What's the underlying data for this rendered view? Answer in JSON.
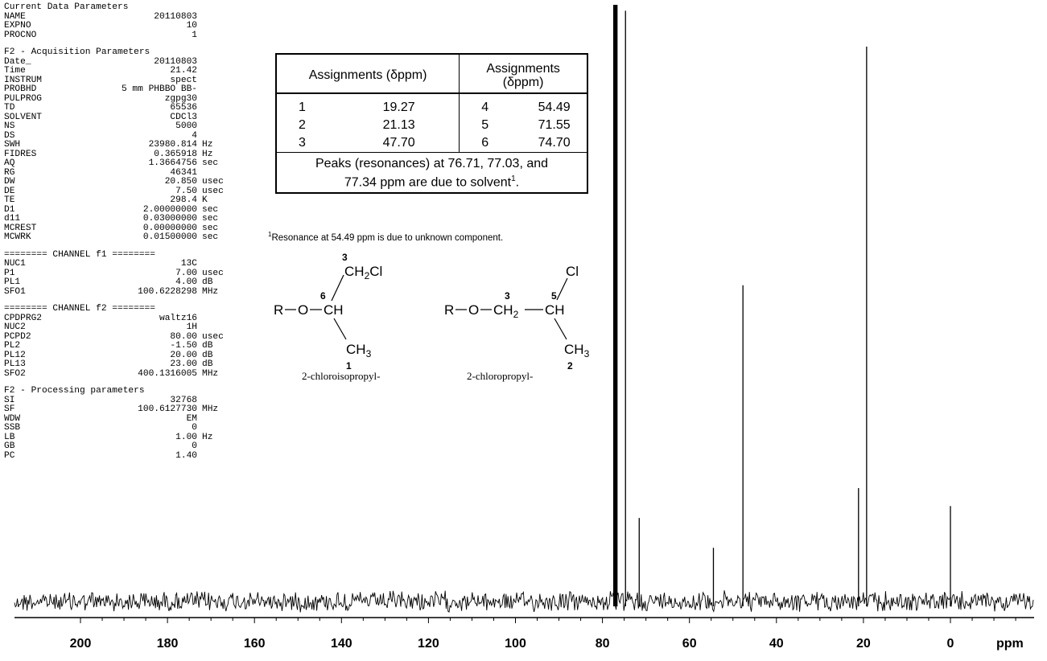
{
  "params": {
    "current": {
      "title": "Current Data Parameters",
      "rows": [
        {
          "k": "NAME",
          "v": "20110803",
          "u": ""
        },
        {
          "k": "EXPNO",
          "v": "10",
          "u": ""
        },
        {
          "k": "PROCNO",
          "v": "1",
          "u": ""
        }
      ]
    },
    "acquisition": {
      "title": "F2 - Acquisition Parameters",
      "rows": [
        {
          "k": "Date_",
          "v": "20110803",
          "u": ""
        },
        {
          "k": "Time",
          "v": "21.42",
          "u": ""
        },
        {
          "k": "INSTRUM",
          "v": "spect",
          "u": ""
        },
        {
          "k": "PROBHD",
          "v": "5 mm PHBBO BB-",
          "u": ""
        },
        {
          "k": "PULPROG",
          "v": "zgpg30",
          "u": ""
        },
        {
          "k": "TD",
          "v": "65536",
          "u": ""
        },
        {
          "k": "SOLVENT",
          "v": "CDCl3",
          "u": ""
        },
        {
          "k": "NS",
          "v": "5000",
          "u": ""
        },
        {
          "k": "DS",
          "v": "4",
          "u": ""
        },
        {
          "k": "SWH",
          "v": "23980.814",
          "u": "Hz"
        },
        {
          "k": "FIDRES",
          "v": "0.365918",
          "u": "Hz"
        },
        {
          "k": "AQ",
          "v": "1.3664756",
          "u": "sec"
        },
        {
          "k": "RG",
          "v": "46341",
          "u": ""
        },
        {
          "k": "DW",
          "v": "20.850",
          "u": "usec"
        },
        {
          "k": "DE",
          "v": "7.50",
          "u": "usec"
        },
        {
          "k": "TE",
          "v": "298.4",
          "u": "K"
        },
        {
          "k": "D1",
          "v": "2.00000000",
          "u": "sec"
        },
        {
          "k": "d11",
          "v": "0.03000000",
          "u": "sec"
        },
        {
          "k": "MCREST",
          "v": "0.00000000",
          "u": "sec"
        },
        {
          "k": "MCWRK",
          "v": "0.01500000",
          "u": "sec"
        }
      ]
    },
    "channel_f1": {
      "title": "======== CHANNEL f1 ========",
      "rows": [
        {
          "k": "NUC1",
          "v": "13C",
          "u": ""
        },
        {
          "k": "P1",
          "v": "7.00",
          "u": "usec"
        },
        {
          "k": "PL1",
          "v": "4.00",
          "u": "dB"
        },
        {
          "k": "SFO1",
          "v": "100.6228298",
          "u": "MHz"
        }
      ]
    },
    "channel_f2": {
      "title": "======== CHANNEL f2 ========",
      "rows": [
        {
          "k": "CPDPRG2",
          "v": "waltz16",
          "u": ""
        },
        {
          "k": "NUC2",
          "v": "1H",
          "u": ""
        },
        {
          "k": "PCPD2",
          "v": "80.00",
          "u": "usec"
        },
        {
          "k": "PL2",
          "v": "-1.50",
          "u": "dB"
        },
        {
          "k": "PL12",
          "v": "20.00",
          "u": "dB"
        },
        {
          "k": "PL13",
          "v": "23.00",
          "u": "dB"
        },
        {
          "k": "SFO2",
          "v": "400.1316005",
          "u": "MHz"
        }
      ]
    },
    "processing": {
      "title": "F2 - Processing parameters",
      "rows": [
        {
          "k": "SI",
          "v": "32768",
          "u": ""
        },
        {
          "k": "SF",
          "v": "100.6127730",
          "u": "MHz"
        },
        {
          "k": "WDW",
          "v": "EM",
          "u": ""
        },
        {
          "k": "SSB",
          "v": "0",
          "u": ""
        },
        {
          "k": "LB",
          "v": "1.00",
          "u": "Hz"
        },
        {
          "k": "GB",
          "v": "0",
          "u": ""
        },
        {
          "k": "PC",
          "v": "1.40",
          "u": ""
        }
      ]
    }
  },
  "assignments": {
    "header_left": "Assignments (δppm)",
    "header_right_1": "Assignments",
    "header_right_2": "(δppm)",
    "rows": [
      {
        "n1": "1",
        "v1": "19.27",
        "n2": "4",
        "v2": "54.49"
      },
      {
        "n1": "2",
        "v1": "21.13",
        "n2": "5",
        "v2": "71.55"
      },
      {
        "n1": "3",
        "v1": "47.70",
        "n2": "6",
        "v2": "74.70"
      }
    ],
    "note_line1": "Peaks (resonances) at 76.71, 77.03, and",
    "note_line2": "77.34 ppm are due to solvent",
    "note_sup": "1",
    "note_end": "."
  },
  "footnote": {
    "sup": "1",
    "text": "Resonance at 54.49 ppm is due to unknown component."
  },
  "structures": {
    "left": {
      "label": "2-chloroisopropyl-",
      "r": "R",
      "o": "O",
      "ch": "CH",
      "ch2cl_a": "CH",
      "ch2cl_sub": "2",
      "ch2cl_b": "Cl",
      "ch3": "CH",
      "ch3_sub": "3",
      "n3": "3",
      "n6": "6",
      "n1": "1"
    },
    "right": {
      "label": "2-chloropropyl-",
      "r": "R",
      "o": "O",
      "ch2": "CH",
      "ch2_sub": "2",
      "ch": "CH",
      "cl": "Cl",
      "ch3": "CH",
      "ch3_sub": "3",
      "n3": "3",
      "n5": "5",
      "n2": "2"
    }
  },
  "chart_data": {
    "type": "line",
    "title": "",
    "xlabel": "ppm",
    "ylabel": "",
    "x_reversed": true,
    "xlim": [
      220,
      -20
    ],
    "xticks": [
      200,
      180,
      160,
      140,
      120,
      100,
      80,
      60,
      40,
      20,
      0
    ],
    "peaks": [
      {
        "ppm": 77.34,
        "height": 1.0
      },
      {
        "ppm": 77.03,
        "height": 1.0
      },
      {
        "ppm": 76.71,
        "height": 1.0
      },
      {
        "ppm": 74.7,
        "height": 0.99
      },
      {
        "ppm": 71.55,
        "height": 0.14
      },
      {
        "ppm": 54.49,
        "height": 0.09
      },
      {
        "ppm": 47.7,
        "height": 0.53
      },
      {
        "ppm": 21.13,
        "height": 0.19
      },
      {
        "ppm": 19.27,
        "height": 0.93
      },
      {
        "ppm": 0.0,
        "height": 0.16
      }
    ],
    "grid": false,
    "legend": "none"
  }
}
